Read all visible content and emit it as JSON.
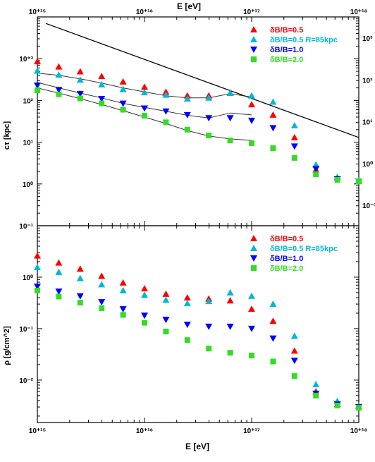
{
  "figure": {
    "top_axis_label": "E [eV]",
    "bottom_axis_label": "E [eV]"
  },
  "chart_data": [
    {
      "type": "scatter",
      "panel": "top",
      "x_scale": "log",
      "y_scale": "log",
      "xlim": [
        1000000000000000.0,
        1e+18
      ],
      "ylim": [
        0.1,
        10000
      ],
      "xlabel": "E [eV]",
      "ylabel": "cτ [kpc]",
      "x_ticks": [
        {
          "value": 1000000000000000.0,
          "label": "10⁺¹⁵"
        },
        {
          "value": 1e+16,
          "label": "10⁺¹⁶"
        },
        {
          "value": 1e+17,
          "label": "10⁺¹⁷"
        },
        {
          "value": 1e+18,
          "label": "10⁺¹⁸"
        }
      ],
      "y_ticks": [
        {
          "value": 1000,
          "label": "10⁺³"
        },
        {
          "value": 100,
          "label": "10²"
        },
        {
          "value": 10,
          "label": "10¹"
        },
        {
          "value": 1,
          "label": "10⁰"
        },
        {
          "value": 0.1,
          "label": "10⁻¹"
        }
      ],
      "right_ticks_partial": [
        "10³",
        "10²",
        "10¹",
        "10⁰",
        "10⁻¹"
      ],
      "series": [
        {
          "name": "δB/B=0.5",
          "color": "#ff0000",
          "marker": "triangle-up",
          "x": [
            1000000000000000.0,
            1585000000000000.0,
            2512000000000000.0,
            3981000000000000.0,
            6310000000000000.0,
            1e+16,
            1.585e+16,
            2.512e+16,
            3.981e+16,
            6.31e+16,
            1e+17,
            1.585e+17,
            2.512e+17,
            3.981e+17,
            6.31e+17,
            1e+18
          ],
          "y": [
            860,
            640,
            490,
            380,
            280,
            210,
            160,
            130,
            130,
            150,
            80,
            45,
            13,
            2.2,
            1.45,
            1.2
          ]
        },
        {
          "name": "δB/B=0.5 R=85kpc",
          "color": "#00b8d4",
          "marker": "triangle-up",
          "x": [
            1000000000000000.0,
            1585000000000000.0,
            2512000000000000.0,
            3981000000000000.0,
            6310000000000000.0,
            1e+16,
            1.585e+16,
            2.512e+16,
            3.981e+16,
            6.31e+16,
            1e+17,
            1.585e+17,
            2.512e+17,
            3.981e+17,
            6.31e+17,
            1e+18
          ],
          "y": [
            510,
            410,
            310,
            240,
            185,
            155,
            135,
            110,
            115,
            150,
            130,
            92,
            25,
            2.9,
            1.45,
            1.2
          ]
        },
        {
          "name": "δB/B=1.0",
          "color": "#0000ff",
          "marker": "triangle-down",
          "x": [
            1000000000000000.0,
            1585000000000000.0,
            2512000000000000.0,
            3981000000000000.0,
            6310000000000000.0,
            1e+16,
            1.585e+16,
            2.512e+16,
            3.981e+16,
            6.31e+16,
            1e+17,
            1.585e+17,
            2.512e+17,
            3.981e+17,
            6.31e+17,
            1e+18
          ],
          "y": [
            230,
            180,
            145,
            110,
            85,
            65,
            55,
            45,
            38,
            38,
            33,
            22,
            8,
            2.3,
            1.3,
            1.15
          ]
        },
        {
          "name": "δB/B=2.0",
          "color": "#33dd22",
          "marker": "square",
          "x": [
            1000000000000000.0,
            1585000000000000.0,
            2512000000000000.0,
            3981000000000000.0,
            6310000000000000.0,
            1e+16,
            1.585e+16,
            2.512e+16,
            3.981e+16,
            6.31e+16,
            1e+17,
            1.585e+17,
            2.512e+17,
            3.981e+17,
            6.31e+17,
            1e+18
          ],
          "y": [
            175,
            140,
            112,
            85,
            60,
            43,
            30,
            20,
            14.5,
            11,
            9.5,
            7.2,
            4.2,
            1.7,
            1.25,
            1.15
          ]
        }
      ],
      "lines": [
        {
          "x": [
            1200000000000000.0,
            1e+18
          ],
          "y": [
            7000,
            13
          ]
        },
        {
          "x": [
            1000000000000000.0,
            1585000000000000.0,
            2512000000000000.0,
            3981000000000000.0,
            6310000000000000.0,
            1e+16,
            1.585e+16,
            2.512e+16,
            3.981e+16,
            6.31e+16,
            1e+17
          ],
          "y": [
            450,
            400,
            330,
            260,
            200,
            160,
            130,
            115,
            115,
            145,
            120
          ]
        },
        {
          "x": [
            1000000000000000.0,
            1585000000000000.0,
            2512000000000000.0,
            3981000000000000.0,
            6310000000000000.0,
            1e+16,
            1.585e+16,
            2.512e+16,
            3.981e+16,
            6.31e+16,
            1e+17
          ],
          "y": [
            270,
            200,
            150,
            115,
            85,
            68,
            55,
            44,
            38,
            50,
            45
          ]
        },
        {
          "x": [
            1000000000000000.0,
            1585000000000000.0,
            2512000000000000.0,
            3981000000000000.0,
            6310000000000000.0,
            1e+16,
            1.585e+16,
            2.512e+16,
            3.981e+16,
            6.31e+16,
            1e+17
          ],
          "y": [
            200,
            150,
            110,
            80,
            57,
            40,
            28,
            19,
            14,
            12,
            11
          ]
        }
      ],
      "legend_position": "top-right"
    },
    {
      "type": "scatter",
      "panel": "bottom",
      "x_scale": "log",
      "y_scale": "log",
      "xlim": [
        1000000000000000.0,
        1e+18
      ],
      "ylim": [
        0.0015,
        10
      ],
      "xlabel": "E [eV]",
      "ylabel": "ρ [g/cm^2]",
      "x_ticks": [
        {
          "value": 1000000000000000.0,
          "label": "10⁺¹⁵"
        },
        {
          "value": 1e+16,
          "label": "10⁺¹⁶"
        },
        {
          "value": 1e+17,
          "label": "10⁺¹⁷"
        },
        {
          "value": 1e+18,
          "label": "10⁺¹⁸"
        }
      ],
      "y_ticks": [
        {
          "value": 1,
          "label": "10⁰"
        },
        {
          "value": 0.1,
          "label": "10⁻¹"
        },
        {
          "value": 0.01,
          "label": "10⁻²"
        }
      ],
      "series": [
        {
          "name": "δB/B=0.5",
          "color": "#ff0000",
          "marker": "triangle-up",
          "x": [
            1000000000000000.0,
            1585000000000000.0,
            2512000000000000.0,
            3981000000000000.0,
            6310000000000000.0,
            1e+16,
            1.585e+16,
            2.512e+16,
            3.981e+16,
            6.31e+16,
            1e+17,
            1.585e+17,
            2.512e+17,
            3.981e+17,
            6.31e+17,
            1e+18
          ],
          "y": [
            2.6,
            1.9,
            1.45,
            1.05,
            0.78,
            0.6,
            0.47,
            0.4,
            0.38,
            0.35,
            0.24,
            0.14,
            0.037,
            0.006,
            0.0034,
            0.0031
          ]
        },
        {
          "name": "δB/B=0.5 R=85kpc",
          "color": "#00b8d4",
          "marker": "triangle-up",
          "x": [
            1000000000000000.0,
            1585000000000000.0,
            2512000000000000.0,
            3981000000000000.0,
            6310000000000000.0,
            1e+16,
            1.585e+16,
            2.512e+16,
            3.981e+16,
            6.31e+16,
            1e+17,
            1.585e+17,
            2.512e+17,
            3.981e+17,
            6.31e+17,
            1e+18
          ],
          "y": [
            1.55,
            1.25,
            0.95,
            0.72,
            0.55,
            0.45,
            0.36,
            0.31,
            0.34,
            0.5,
            0.43,
            0.3,
            0.072,
            0.0082,
            0.0039,
            0.0031
          ]
        },
        {
          "name": "δB/B=1.0",
          "color": "#0000ff",
          "marker": "triangle-down",
          "x": [
            1000000000000000.0,
            1585000000000000.0,
            2512000000000000.0,
            3981000000000000.0,
            6310000000000000.0,
            1e+16,
            1.585e+16,
            2.512e+16,
            3.981e+16,
            6.31e+16,
            1e+17,
            1.585e+17,
            2.512e+17,
            3.981e+17,
            6.31e+17,
            1e+18
          ],
          "y": [
            0.66,
            0.53,
            0.43,
            0.33,
            0.24,
            0.18,
            0.15,
            0.12,
            0.11,
            0.11,
            0.1,
            0.065,
            0.024,
            0.0055,
            0.0034,
            0.003
          ]
        },
        {
          "name": "δB/B=2.0",
          "color": "#33dd22",
          "marker": "square",
          "x": [
            1000000000000000.0,
            1585000000000000.0,
            2512000000000000.0,
            3981000000000000.0,
            6310000000000000.0,
            1e+16,
            1.585e+16,
            2.512e+16,
            3.981e+16,
            6.31e+16,
            1e+17,
            1.585e+17,
            2.512e+17,
            3.981e+17,
            6.31e+17,
            1e+18
          ],
          "y": [
            0.55,
            0.42,
            0.32,
            0.25,
            0.185,
            0.13,
            0.088,
            0.06,
            0.041,
            0.034,
            0.03,
            0.023,
            0.012,
            0.005,
            0.0032,
            0.0029
          ]
        }
      ],
      "legend_position": "top-right"
    }
  ]
}
